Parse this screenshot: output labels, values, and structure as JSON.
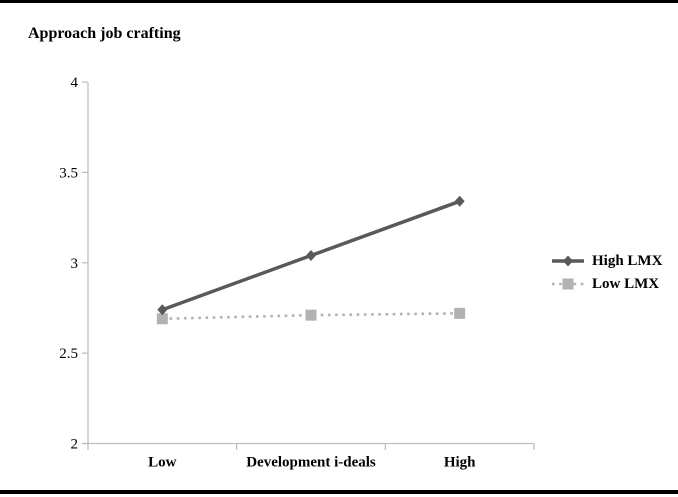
{
  "chart_data": {
    "type": "line",
    "title": "Approach job crafting",
    "xlabel": "Development i-deals",
    "ylabel": "Approach job crafting",
    "categories": [
      "Low",
      "Development i-deals",
      "High"
    ],
    "series": [
      {
        "name": "High LMX",
        "values": [
          2.74,
          3.04,
          3.34
        ],
        "color": "#595959",
        "marker": "diamond",
        "line_style": "solid"
      },
      {
        "name": "Low LMX",
        "values": [
          2.69,
          2.71,
          2.72
        ],
        "color": "#b2b2b2",
        "marker": "square",
        "line_style": "dotted"
      }
    ],
    "ylim": [
      2,
      4
    ],
    "yticks": [
      4,
      3.5,
      3,
      2.5,
      2
    ],
    "ytick_labels": [
      "4",
      "3.5",
      "3",
      "2.5",
      "2"
    ],
    "grid": false,
    "legend_position": "right"
  },
  "colors": {
    "high_lmx": "#595959",
    "low_lmx": "#b2b2b2",
    "axis": "#bfbfbf",
    "text": "#000000",
    "border": "#000000"
  }
}
